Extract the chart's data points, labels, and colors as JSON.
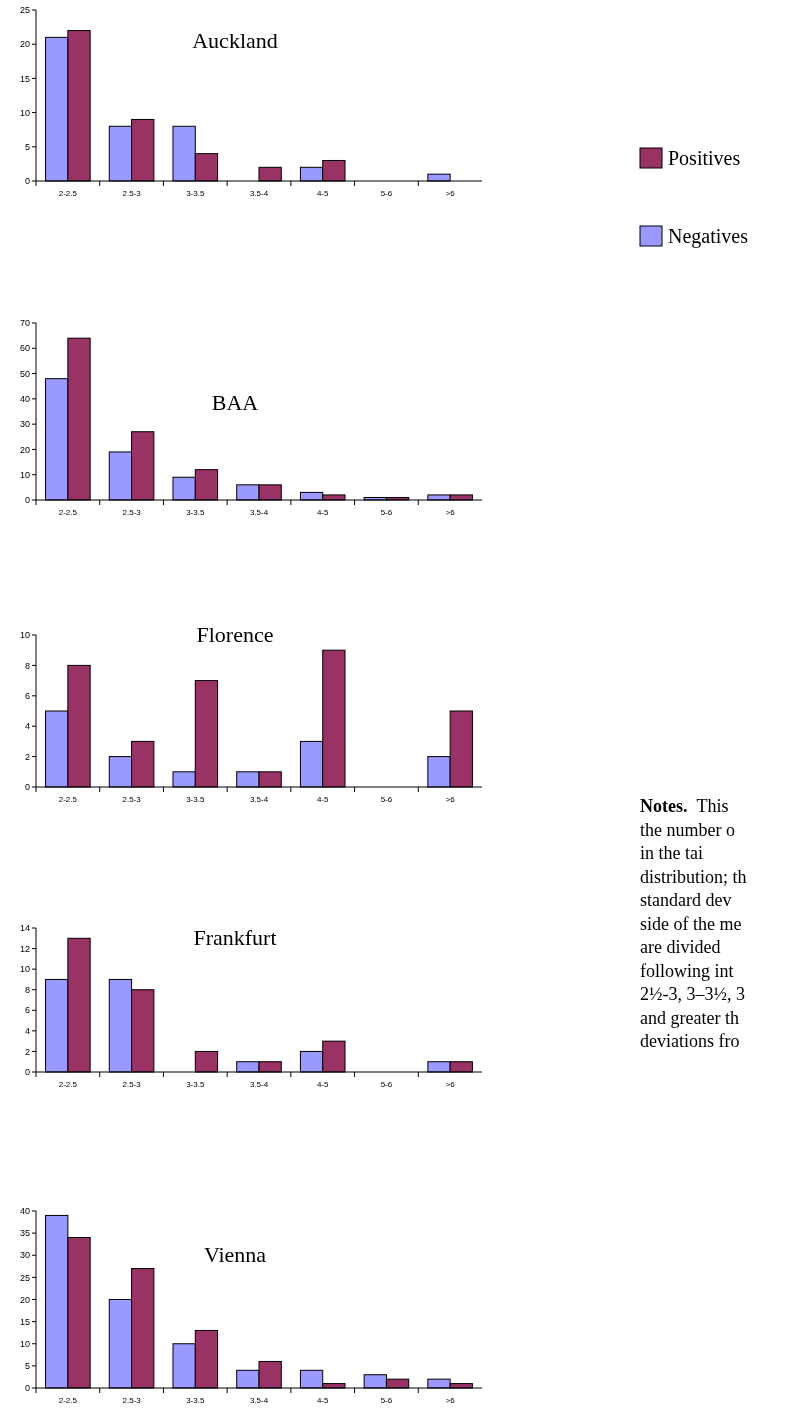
{
  "chart_data": [
    {
      "type": "bar",
      "title": "Auckland",
      "categories": [
        "2-2.5",
        "2.5-3",
        "3-3.5",
        "3.5-4",
        "4-5",
        "5-6",
        ">6"
      ],
      "ylim": [
        0,
        25
      ],
      "yticks": [
        0,
        5,
        10,
        15,
        20,
        25
      ],
      "legend": "right",
      "series": [
        {
          "name": "Negatives",
          "color": "#9999ff",
          "values": [
            21,
            8,
            8,
            0,
            2,
            0,
            1
          ]
        },
        {
          "name": "Positives",
          "color": "#993366",
          "values": [
            22,
            9,
            4,
            2,
            3,
            0,
            0
          ]
        }
      ]
    },
    {
      "type": "bar",
      "title": "BAA",
      "categories": [
        "2-2.5",
        "2.5-3",
        "3-3.5",
        "3.5-4",
        "4-5",
        "5-6",
        ">6"
      ],
      "ylim": [
        0,
        70
      ],
      "yticks": [
        0,
        10,
        20,
        30,
        40,
        50,
        60,
        70
      ],
      "series": [
        {
          "color": "#9999ff",
          "values": [
            48,
            19,
            9,
            6,
            3,
            1,
            2
          ]
        },
        {
          "color": "#993366",
          "values": [
            64,
            27,
            12,
            6,
            2,
            1,
            2
          ]
        }
      ]
    },
    {
      "type": "bar",
      "title": "Florence",
      "categories": [
        "2-2.5",
        "2.5-3",
        "3-3.5",
        "3.5-4",
        "4-5",
        "5-6",
        ">6"
      ],
      "ylim": [
        0,
        10
      ],
      "yticks": [
        0,
        2,
        4,
        6,
        8,
        10
      ],
      "series": [
        {
          "color": "#9999ff",
          "values": [
            5,
            2,
            1,
            1,
            3,
            0,
            2
          ]
        },
        {
          "color": "#993366",
          "values": [
            8,
            3,
            7,
            1,
            9,
            0,
            5
          ]
        }
      ]
    },
    {
      "type": "bar",
      "title": "Frankfurt",
      "categories": [
        "2-2.5",
        "2.5-3",
        "3-3.5",
        "3.5-4",
        "4-5",
        "5-6",
        ">6"
      ],
      "ylim": [
        0,
        14
      ],
      "yticks": [
        0,
        2,
        4,
        6,
        8,
        10,
        12,
        14
      ],
      "series": [
        {
          "color": "#9999ff",
          "values": [
            9,
            9,
            0,
            1,
            2,
            0,
            1
          ]
        },
        {
          "color": "#993366",
          "values": [
            13,
            8,
            2,
            1,
            3,
            0,
            1
          ]
        }
      ]
    },
    {
      "type": "bar",
      "title": "Vienna",
      "categories": [
        "2-2.5",
        "2.5-3",
        "3-3.5",
        "3.5-4",
        "4-5",
        "5-6",
        ">6"
      ],
      "ylim": [
        0,
        40
      ],
      "yticks": [
        0,
        5,
        10,
        15,
        20,
        25,
        30,
        35,
        40
      ],
      "series": [
        {
          "color": "#9999ff",
          "values": [
            39,
            20,
            10,
            4,
            4,
            3,
            2
          ]
        },
        {
          "color": "#993366",
          "values": [
            34,
            27,
            13,
            6,
            1,
            2,
            1
          ]
        }
      ]
    },
    {
      "type": "other",
      "annotations": [
        "Notes. This",
        "the number o",
        "in the tai",
        "distribution; th",
        "standard dev",
        "side of the me",
        "are divided",
        "following int",
        "2½-3, 3–3½, 3",
        "and greater th",
        "deviations fro"
      ]
    }
  ]
}
